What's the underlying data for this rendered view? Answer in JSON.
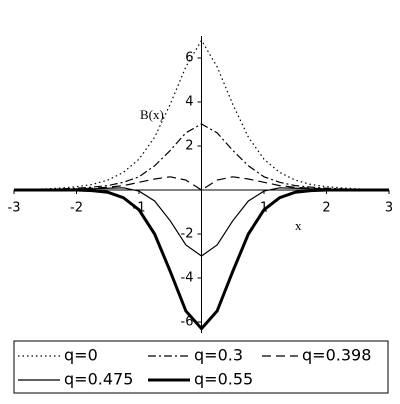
{
  "chart_data": {
    "type": "line",
    "xlabel": "x",
    "ylabel": "B(x)",
    "xlim": [
      -3,
      3
    ],
    "ylim": [
      -6.5,
      7
    ],
    "xticks": [
      -3,
      -2,
      -1,
      1,
      2,
      3
    ],
    "yticks": [
      -6,
      -4,
      -2,
      2,
      4,
      6
    ],
    "x": [
      -3,
      -2.75,
      -2.5,
      -2.25,
      -2,
      -1.75,
      -1.5,
      -1.25,
      -1,
      -0.75,
      -0.5,
      -0.25,
      0,
      0.25,
      0.5,
      0.75,
      1,
      1.25,
      1.5,
      1.75,
      2,
      2.25,
      2.5,
      2.75,
      3
    ],
    "series": [
      {
        "name": "q=0",
        "color": "#000000",
        "dash": "dotted",
        "linewidth": 1.2,
        "values": [
          0.02,
          0.03,
          0.05,
          0.09,
          0.15,
          0.25,
          0.45,
          0.8,
          1.4,
          2.4,
          3.9,
          5.6,
          6.8,
          5.6,
          3.9,
          2.4,
          1.4,
          0.8,
          0.45,
          0.25,
          0.15,
          0.09,
          0.05,
          0.03,
          0.02
        ]
      },
      {
        "name": "q=0.3",
        "color": "#000000",
        "dash": "dashdot",
        "linewidth": 1.2,
        "values": [
          0.01,
          0.02,
          0.03,
          0.05,
          0.08,
          0.13,
          0.2,
          0.35,
          0.6,
          1.1,
          1.8,
          2.6,
          3.0,
          2.6,
          1.8,
          1.1,
          0.6,
          0.35,
          0.2,
          0.13,
          0.08,
          0.05,
          0.03,
          0.02,
          0.01
        ]
      },
      {
        "name": "q=0.398",
        "color": "#000000",
        "dash": "dashed",
        "linewidth": 1.2,
        "values": [
          0.01,
          0.01,
          0.02,
          0.03,
          0.05,
          0.08,
          0.12,
          0.2,
          0.35,
          0.5,
          0.6,
          0.45,
          0,
          0.45,
          0.6,
          0.5,
          0.35,
          0.2,
          0.12,
          0.08,
          0.05,
          0.03,
          0.02,
          0.01,
          0.01
        ]
      },
      {
        "name": "q=0.475",
        "color": "#000000",
        "dash": "solid",
        "linewidth": 1.2,
        "values": [
          0,
          0.01,
          0.01,
          0.02,
          0.03,
          0.05,
          0.08,
          0.1,
          -0.05,
          -0.5,
          -1.4,
          -2.5,
          -3.0,
          -2.5,
          -1.4,
          -0.5,
          -0.05,
          0.1,
          0.08,
          0.05,
          0.03,
          0.02,
          0.01,
          0.01,
          0
        ]
      },
      {
        "name": "q=0.55",
        "color": "#000000",
        "dash": "solid",
        "linewidth": 3,
        "values": [
          0,
          0,
          0,
          0,
          0,
          -0.03,
          -0.1,
          -0.35,
          -0.9,
          -2.0,
          -3.7,
          -5.5,
          -6.3,
          -5.5,
          -3.7,
          -2.0,
          -0.9,
          -0.35,
          -0.1,
          -0.03,
          0,
          0,
          0,
          0,
          0
        ]
      }
    ]
  }
}
